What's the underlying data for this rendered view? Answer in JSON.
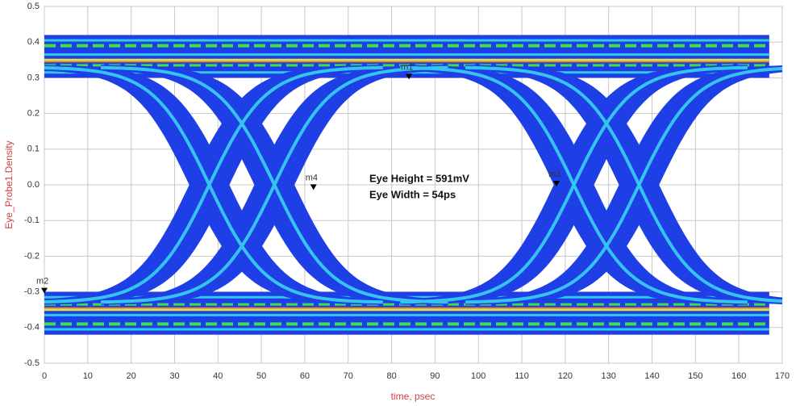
{
  "chart_data": {
    "type": "eye",
    "xlabel": "time, psec",
    "ylabel": "Eye_Probe1.Density",
    "xlim": [
      0,
      170
    ],
    "xticks": [
      0,
      10,
      20,
      30,
      40,
      50,
      60,
      70,
      80,
      90,
      100,
      110,
      120,
      130,
      140,
      150,
      160,
      170
    ],
    "ylim": [
      -0.5,
      0.5
    ],
    "yticks": [
      0.5,
      0.4,
      0.3,
      0.2,
      0.1,
      {
        "value": 0,
        "label": "0.0"
      },
      -0.1,
      -0.2,
      -0.3,
      -0.4,
      -0.5
    ],
    "grid": true,
    "markers": [
      {
        "name": "m1",
        "x": 84,
        "y": 0.3
      },
      {
        "name": "m2",
        "x": 0,
        "y": -0.3
      },
      {
        "name": "m3",
        "x": 118,
        "y": 0.0
      },
      {
        "name": "m4",
        "x": 62,
        "y": -0.01
      }
    ],
    "annotations": [
      "Eye Height = 591mV",
      "Eye Width = 54ps"
    ]
  }
}
